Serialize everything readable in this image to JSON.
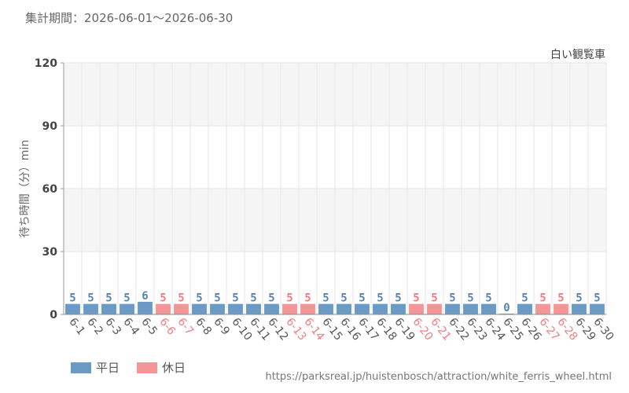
{
  "period": "集計期間：2026-06-01～2026-06-30",
  "source_url": "https://parksreal.jp/huistenbosch/attraction/white_ferris_wheel.html",
  "colors": {
    "weekday": "#6b9ac4",
    "holiday": "#f49597",
    "weekday_text": "#5a84b0",
    "holiday_text": "#f07d80"
  },
  "chart_data": {
    "type": "bar",
    "title": "白い観覧車",
    "ylabel": "待ち時間（分）min",
    "xlabel": "",
    "ylim": [
      0,
      120
    ],
    "yticks": [
      0,
      30,
      60,
      90,
      120
    ],
    "grid": true,
    "legend_placement": "bottom-left",
    "legend": [
      {
        "name": "平日",
        "type": "weekday"
      },
      {
        "name": "休日",
        "type": "holiday"
      }
    ],
    "categories": [
      "6-1",
      "6-2",
      "6-3",
      "6-4",
      "6-5",
      "6-6",
      "6-7",
      "6-8",
      "6-9",
      "6-10",
      "6-11",
      "6-12",
      "6-13",
      "6-14",
      "6-15",
      "6-16",
      "6-17",
      "6-18",
      "6-19",
      "6-20",
      "6-21",
      "6-22",
      "6-23",
      "6-24",
      "6-25",
      "6-26",
      "6-27",
      "6-28",
      "6-29",
      "6-30"
    ],
    "values": [
      5,
      5,
      5,
      5,
      6,
      5,
      5,
      5,
      5,
      5,
      5,
      5,
      5,
      5,
      5,
      5,
      5,
      5,
      5,
      5,
      5,
      5,
      5,
      5,
      0,
      5,
      5,
      5,
      5,
      5
    ],
    "day_types": [
      "weekday",
      "weekday",
      "weekday",
      "weekday",
      "weekday",
      "holiday",
      "holiday",
      "weekday",
      "weekday",
      "weekday",
      "weekday",
      "weekday",
      "holiday",
      "holiday",
      "weekday",
      "weekday",
      "weekday",
      "weekday",
      "weekday",
      "holiday",
      "holiday",
      "weekday",
      "weekday",
      "weekday",
      "weekday",
      "weekday",
      "holiday",
      "holiday",
      "weekday",
      "weekday"
    ]
  }
}
